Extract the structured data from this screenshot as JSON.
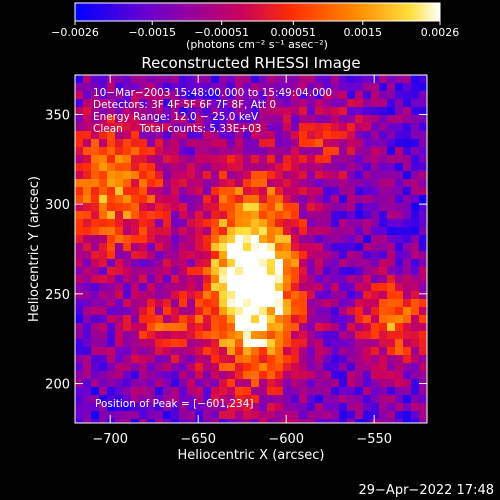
{
  "chart_data": {
    "type": "heatmap",
    "title": "Reconstructed RHESSI Image",
    "xlabel": "Heliocentric X (arcsec)",
    "ylabel": "Heliocentric Y (arcsec)",
    "xlim": [
      -720,
      -520
    ],
    "ylim": [
      178,
      372
    ],
    "x_ticks": [
      -700,
      -650,
      -600,
      -550
    ],
    "y_ticks": [
      200,
      250,
      300,
      350
    ],
    "x_tick_labels": [
      "−700",
      "−650",
      "−600",
      "−550"
    ],
    "y_tick_labels": [
      "200",
      "250",
      "300",
      "350"
    ],
    "colorbar": {
      "range": [
        -0.0026,
        0.0026
      ],
      "ticks": [
        -0.0026,
        -0.0015,
        -0.00051,
        0.00051,
        0.0015,
        0.0026
      ],
      "tick_labels": [
        "−0.0026",
        "−0.0015",
        "−0.00051",
        "0.00051",
        "0.0015",
        "0.0026"
      ],
      "unit_label": "(photons cm⁻² s⁻¹ asec⁻²)",
      "colors": [
        "#0000ff",
        "#6a00d0",
        "#c80060",
        "#ff3000",
        "#ff9000",
        "#ffe040",
        "#ffffff"
      ]
    },
    "annotations": [
      "10−Mar−2003 15:48:00.000 to 15:49:04.000",
      "Detectors: 3F 4F 5F 6F 7F 8F, Att 0",
      "Energy Range: 12.0 − 25.0 keV",
      "Clean     Total counts: 5.33E+03"
    ],
    "peak_label": "Position of Peak = [−601,234]",
    "peak": [
      -601,
      234
    ],
    "grid": false
  },
  "footer": {
    "timestamp": "29−Apr−2022 17:48"
  }
}
